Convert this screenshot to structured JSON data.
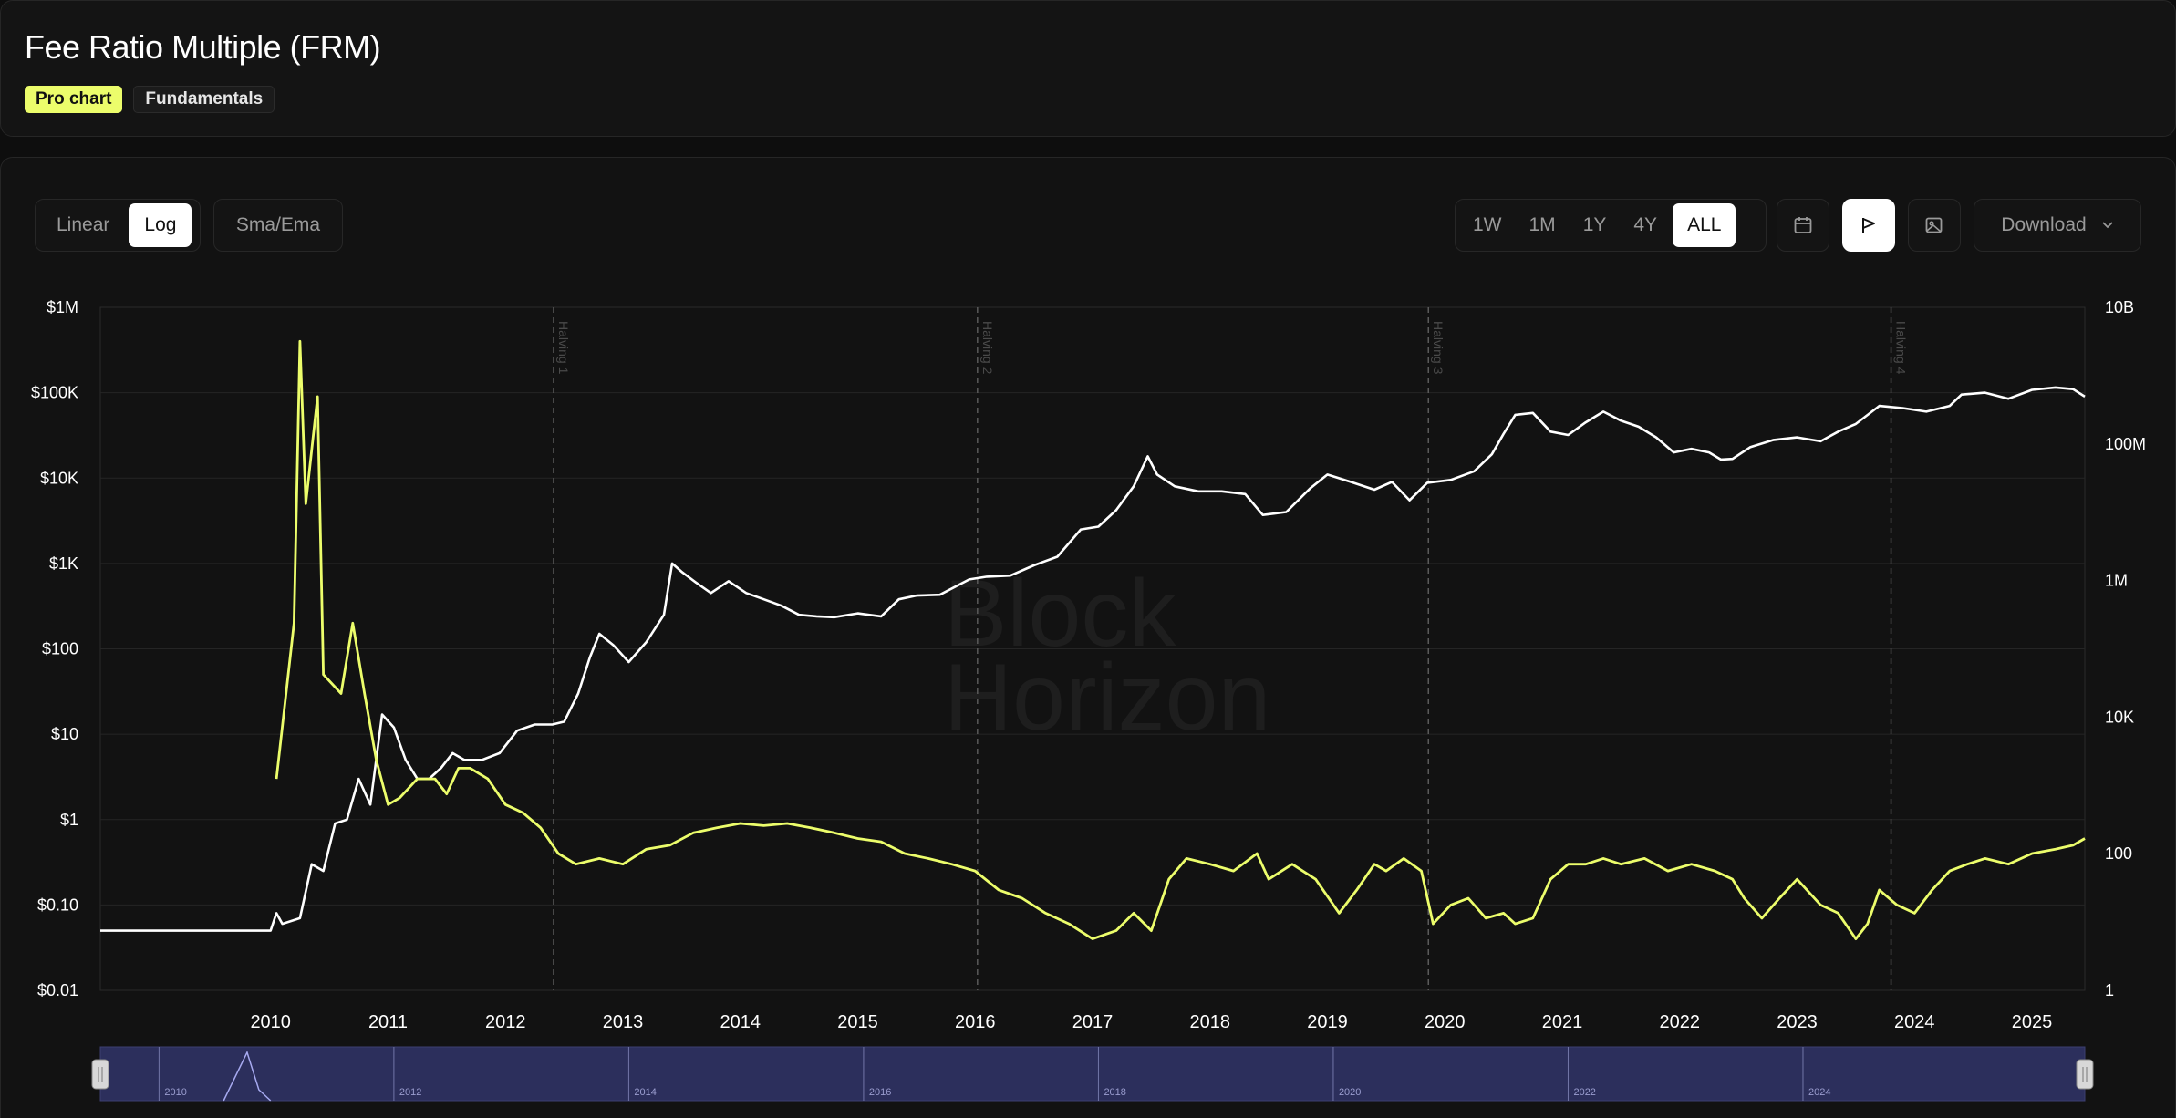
{
  "header": {
    "title": "Fee Ratio Multiple (FRM)",
    "tags": [
      "Pro chart",
      "Fundamentals"
    ]
  },
  "toolbar": {
    "scale_options": [
      "Linear",
      "Log"
    ],
    "scale_active": "Log",
    "sma_label": "Sma/Ema",
    "ranges": [
      "1W",
      "1M",
      "1Y",
      "4Y",
      "ALL"
    ],
    "range_active": "ALL",
    "icons": [
      "calendar-icon",
      "flag-icon",
      "image-icon"
    ],
    "download_label": "Download"
  },
  "watermark": {
    "line1": "Block",
    "line2": "Horizon"
  },
  "colors": {
    "background": "#121212",
    "price_series": "#ffffff",
    "frm_series": "#ecfd6b",
    "navigator": "#2c2f5c"
  },
  "chart_data": {
    "type": "line",
    "title": "Fee Ratio Multiple (FRM)",
    "y_scale": "log",
    "y_left_ticks": [
      "$1M",
      "$100K",
      "$10K",
      "$1K",
      "$100",
      "$10",
      "$1",
      "$0.10",
      "$0.01"
    ],
    "y_left_range": [
      0.01,
      1000000
    ],
    "y_right_ticks": [
      "10B",
      "100M",
      "1M",
      "10K",
      "100",
      "1"
    ],
    "y_right_range": [
      1,
      10000000000
    ],
    "x_ticks": [
      "2010",
      "2011",
      "2012",
      "2013",
      "2014",
      "2015",
      "2016",
      "2017",
      "2018",
      "2019",
      "2020",
      "2021",
      "2022",
      "2023",
      "2024",
      "2025"
    ],
    "x_range": [
      2009.05,
      2025.95
    ],
    "navigator_ticks": [
      "2010",
      "2012",
      "2014",
      "2016",
      "2018",
      "2020",
      "2022",
      "2024"
    ],
    "halvings": [
      {
        "label": "Halving 1",
        "x": 2012.91
      },
      {
        "label": "Halving 2",
        "x": 2016.52
      },
      {
        "label": "Halving 3",
        "x": 2020.36
      },
      {
        "label": "Halving 4",
        "x": 2024.3
      }
    ],
    "series": [
      {
        "axis": "left",
        "color": "#ffffff",
        "points": [
          [
            2009.05,
            0.05
          ],
          [
            2010.5,
            0.05
          ],
          [
            2010.55,
            0.08
          ],
          [
            2010.6,
            0.06
          ],
          [
            2010.75,
            0.07
          ],
          [
            2010.85,
            0.3
          ],
          [
            2010.95,
            0.25
          ],
          [
            2011.05,
            0.9
          ],
          [
            2011.15,
            1.0
          ],
          [
            2011.25,
            3
          ],
          [
            2011.35,
            1.5
          ],
          [
            2011.45,
            17
          ],
          [
            2011.55,
            12
          ],
          [
            2011.65,
            5
          ],
          [
            2011.75,
            3
          ],
          [
            2011.85,
            3
          ],
          [
            2011.95,
            4
          ],
          [
            2012.05,
            6
          ],
          [
            2012.15,
            5
          ],
          [
            2012.3,
            5
          ],
          [
            2012.45,
            6
          ],
          [
            2012.6,
            11
          ],
          [
            2012.75,
            13
          ],
          [
            2012.9,
            13
          ],
          [
            2013.0,
            14
          ],
          [
            2013.12,
            30
          ],
          [
            2013.22,
            80
          ],
          [
            2013.3,
            150
          ],
          [
            2013.42,
            110
          ],
          [
            2013.55,
            70
          ],
          [
            2013.7,
            120
          ],
          [
            2013.85,
            250
          ],
          [
            2013.92,
            1000
          ],
          [
            2014.0,
            800
          ],
          [
            2014.12,
            600
          ],
          [
            2014.25,
            450
          ],
          [
            2014.4,
            620
          ],
          [
            2014.55,
            450
          ],
          [
            2014.7,
            380
          ],
          [
            2014.85,
            320
          ],
          [
            2015.0,
            250
          ],
          [
            2015.15,
            240
          ],
          [
            2015.3,
            235
          ],
          [
            2015.5,
            260
          ],
          [
            2015.7,
            240
          ],
          [
            2015.85,
            380
          ],
          [
            2016.0,
            420
          ],
          [
            2016.2,
            430
          ],
          [
            2016.45,
            650
          ],
          [
            2016.6,
            700
          ],
          [
            2016.8,
            720
          ],
          [
            2017.0,
            950
          ],
          [
            2017.2,
            1200
          ],
          [
            2017.4,
            2500
          ],
          [
            2017.55,
            2700
          ],
          [
            2017.7,
            4200
          ],
          [
            2017.85,
            8000
          ],
          [
            2017.97,
            18000
          ],
          [
            2018.05,
            11000
          ],
          [
            2018.2,
            8000
          ],
          [
            2018.4,
            7000
          ],
          [
            2018.6,
            7000
          ],
          [
            2018.8,
            6500
          ],
          [
            2018.95,
            3700
          ],
          [
            2019.15,
            4000
          ],
          [
            2019.35,
            7500
          ],
          [
            2019.5,
            11000
          ],
          [
            2019.7,
            9000
          ],
          [
            2019.9,
            7300
          ],
          [
            2020.05,
            9000
          ],
          [
            2020.2,
            5500
          ],
          [
            2020.35,
            8800
          ],
          [
            2020.55,
            9500
          ],
          [
            2020.75,
            12000
          ],
          [
            2020.9,
            19000
          ],
          [
            2021.0,
            33000
          ],
          [
            2021.1,
            55000
          ],
          [
            2021.25,
            58000
          ],
          [
            2021.4,
            35000
          ],
          [
            2021.55,
            32000
          ],
          [
            2021.7,
            45000
          ],
          [
            2021.85,
            60000
          ],
          [
            2022.0,
            47000
          ],
          [
            2022.15,
            40000
          ],
          [
            2022.3,
            30000
          ],
          [
            2022.45,
            20000
          ],
          [
            2022.6,
            22000
          ],
          [
            2022.75,
            20000
          ],
          [
            2022.85,
            16500
          ],
          [
            2022.95,
            16800
          ],
          [
            2023.1,
            23000
          ],
          [
            2023.3,
            28000
          ],
          [
            2023.5,
            30000
          ],
          [
            2023.7,
            27000
          ],
          [
            2023.85,
            35000
          ],
          [
            2024.0,
            43000
          ],
          [
            2024.2,
            70000
          ],
          [
            2024.4,
            66000
          ],
          [
            2024.6,
            60000
          ],
          [
            2024.8,
            70000
          ],
          [
            2024.9,
            95000
          ],
          [
            2025.1,
            100000
          ],
          [
            2025.3,
            85000
          ],
          [
            2025.5,
            108000
          ],
          [
            2025.7,
            115000
          ],
          [
            2025.85,
            110000
          ],
          [
            2025.95,
            90000
          ]
        ]
      },
      {
        "axis": "left",
        "color": "#ecfd6b",
        "points": [
          [
            2010.55,
            3
          ],
          [
            2010.7,
            200
          ],
          [
            2010.75,
            400000
          ],
          [
            2010.8,
            5000
          ],
          [
            2010.9,
            90000
          ],
          [
            2010.95,
            50
          ],
          [
            2011.1,
            30
          ],
          [
            2011.2,
            200
          ],
          [
            2011.3,
            30
          ],
          [
            2011.4,
            5
          ],
          [
            2011.5,
            1.5
          ],
          [
            2011.6,
            1.8
          ],
          [
            2011.75,
            3
          ],
          [
            2011.9,
            3
          ],
          [
            2012.0,
            2
          ],
          [
            2012.1,
            4
          ],
          [
            2012.2,
            4
          ],
          [
            2012.35,
            3
          ],
          [
            2012.5,
            1.5
          ],
          [
            2012.65,
            1.2
          ],
          [
            2012.8,
            0.8
          ],
          [
            2012.95,
            0.4
          ],
          [
            2013.1,
            0.3
          ],
          [
            2013.3,
            0.35
          ],
          [
            2013.5,
            0.3
          ],
          [
            2013.7,
            0.45
          ],
          [
            2013.9,
            0.5
          ],
          [
            2014.1,
            0.7
          ],
          [
            2014.3,
            0.8
          ],
          [
            2014.5,
            0.9
          ],
          [
            2014.7,
            0.85
          ],
          [
            2014.9,
            0.9
          ],
          [
            2015.1,
            0.8
          ],
          [
            2015.3,
            0.7
          ],
          [
            2015.5,
            0.6
          ],
          [
            2015.7,
            0.55
          ],
          [
            2015.9,
            0.4
          ],
          [
            2016.1,
            0.35
          ],
          [
            2016.3,
            0.3
          ],
          [
            2016.5,
            0.25
          ],
          [
            2016.7,
            0.15
          ],
          [
            2016.9,
            0.12
          ],
          [
            2017.1,
            0.08
          ],
          [
            2017.3,
            0.06
          ],
          [
            2017.5,
            0.04
          ],
          [
            2017.7,
            0.05
          ],
          [
            2017.85,
            0.08
          ],
          [
            2018.0,
            0.05
          ],
          [
            2018.15,
            0.2
          ],
          [
            2018.3,
            0.35
          ],
          [
            2018.5,
            0.3
          ],
          [
            2018.7,
            0.25
          ],
          [
            2018.9,
            0.4
          ],
          [
            2019.0,
            0.2
          ],
          [
            2019.2,
            0.3
          ],
          [
            2019.4,
            0.2
          ],
          [
            2019.6,
            0.08
          ],
          [
            2019.75,
            0.15
          ],
          [
            2019.9,
            0.3
          ],
          [
            2020.0,
            0.25
          ],
          [
            2020.15,
            0.35
          ],
          [
            2020.3,
            0.25
          ],
          [
            2020.4,
            0.06
          ],
          [
            2020.55,
            0.1
          ],
          [
            2020.7,
            0.12
          ],
          [
            2020.85,
            0.07
          ],
          [
            2021.0,
            0.08
          ],
          [
            2021.1,
            0.06
          ],
          [
            2021.25,
            0.07
          ],
          [
            2021.4,
            0.2
          ],
          [
            2021.55,
            0.3
          ],
          [
            2021.7,
            0.3
          ],
          [
            2021.85,
            0.35
          ],
          [
            2022.0,
            0.3
          ],
          [
            2022.2,
            0.35
          ],
          [
            2022.4,
            0.25
          ],
          [
            2022.6,
            0.3
          ],
          [
            2022.8,
            0.25
          ],
          [
            2022.95,
            0.2
          ],
          [
            2023.05,
            0.12
          ],
          [
            2023.2,
            0.07
          ],
          [
            2023.35,
            0.12
          ],
          [
            2023.5,
            0.2
          ],
          [
            2023.7,
            0.1
          ],
          [
            2023.85,
            0.08
          ],
          [
            2024.0,
            0.04
          ],
          [
            2024.1,
            0.06
          ],
          [
            2024.2,
            0.15
          ],
          [
            2024.35,
            0.1
          ],
          [
            2024.5,
            0.08
          ],
          [
            2024.65,
            0.15
          ],
          [
            2024.8,
            0.25
          ],
          [
            2024.95,
            0.3
          ],
          [
            2025.1,
            0.35
          ],
          [
            2025.3,
            0.3
          ],
          [
            2025.5,
            0.4
          ],
          [
            2025.7,
            0.45
          ],
          [
            2025.85,
            0.5
          ],
          [
            2025.95,
            0.6
          ]
        ]
      }
    ],
    "grid": true
  }
}
